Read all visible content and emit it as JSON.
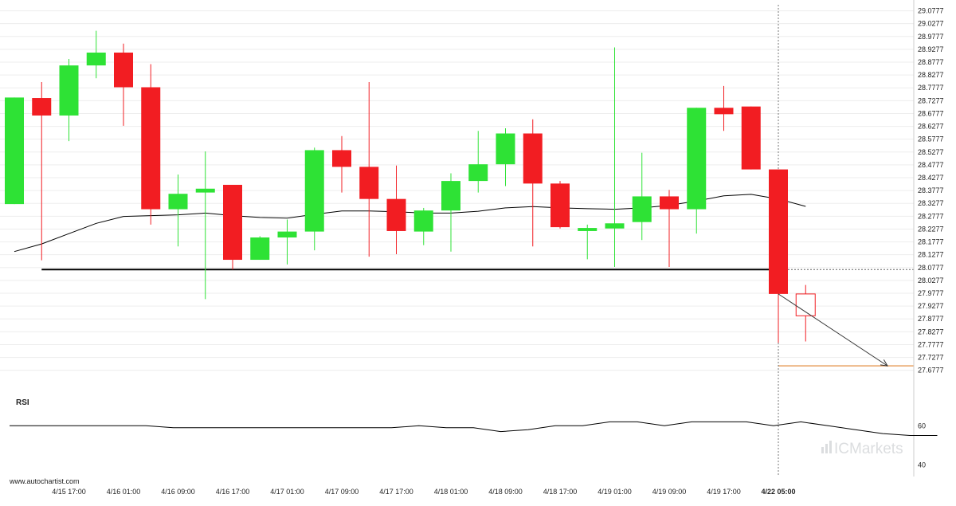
{
  "chart_data": {
    "type": "candlestick",
    "x_labels": [
      "4/15 17:00",
      "4/16 01:00",
      "4/16 09:00",
      "4/16 17:00",
      "4/17 01:00",
      "4/17 09:00",
      "4/17 17:00",
      "4/18 01:00",
      "4/18 09:00",
      "4/18 17:00",
      "4/19 01:00",
      "4/19 09:00",
      "4/19 17:00",
      "4/22 05:00"
    ],
    "x_label_candle_index": [
      2,
      4,
      6,
      8,
      10,
      12,
      14,
      16,
      18,
      20,
      22,
      24,
      26,
      28
    ],
    "y_ticks": [
      "29.0777",
      "29.0277",
      "28.9777",
      "28.9277",
      "28.8777",
      "28.8277",
      "28.7777",
      "28.7277",
      "28.6777",
      "28.6277",
      "28.5777",
      "28.5277",
      "28.4777",
      "28.4277",
      "28.3777",
      "28.3277",
      "28.2777",
      "28.2277",
      "28.1777",
      "28.1277",
      "28.0777",
      "28.0277",
      "27.9777",
      "27.9277",
      "27.8777",
      "27.8277",
      "27.7777",
      "27.7277",
      "27.6777"
    ],
    "ylim": [
      27.655,
      29.095
    ],
    "candles": [
      {
        "o": 28.325,
        "h": 28.74,
        "l": 28.325,
        "c": 28.74
      },
      {
        "o": 28.738,
        "h": 28.8,
        "l": 28.106,
        "c": 28.67
      },
      {
        "o": 28.67,
        "h": 28.89,
        "l": 28.57,
        "c": 28.865
      },
      {
        "o": 28.865,
        "h": 29.0,
        "l": 28.815,
        "c": 28.915
      },
      {
        "o": 28.915,
        "h": 28.95,
        "l": 28.63,
        "c": 28.78
      },
      {
        "o": 28.78,
        "h": 28.87,
        "l": 28.245,
        "c": 28.305
      },
      {
        "o": 28.305,
        "h": 28.44,
        "l": 28.16,
        "c": 28.365
      },
      {
        "o": 28.37,
        "h": 28.53,
        "l": 27.955,
        "c": 28.385
      },
      {
        "o": 28.4,
        "h": 28.4,
        "l": 28.07,
        "c": 28.108
      },
      {
        "o": 28.108,
        "h": 28.2,
        "l": 28.108,
        "c": 28.195
      },
      {
        "o": 28.195,
        "h": 28.265,
        "l": 28.09,
        "c": 28.218
      },
      {
        "o": 28.218,
        "h": 28.545,
        "l": 28.145,
        "c": 28.535
      },
      {
        "o": 28.535,
        "h": 28.59,
        "l": 28.37,
        "c": 28.47
      },
      {
        "o": 28.47,
        "h": 28.8,
        "l": 28.12,
        "c": 28.345
      },
      {
        "o": 28.345,
        "h": 28.475,
        "l": 28.13,
        "c": 28.22
      },
      {
        "o": 28.218,
        "h": 28.31,
        "l": 28.165,
        "c": 28.3
      },
      {
        "o": 28.3,
        "h": 28.445,
        "l": 28.14,
        "c": 28.415
      },
      {
        "o": 28.415,
        "h": 28.61,
        "l": 28.37,
        "c": 28.48
      },
      {
        "o": 28.48,
        "h": 28.62,
        "l": 28.395,
        "c": 28.6
      },
      {
        "o": 28.6,
        "h": 28.655,
        "l": 28.16,
        "c": 28.405
      },
      {
        "o": 28.405,
        "h": 28.415,
        "l": 28.23,
        "c": 28.235
      },
      {
        "o": 28.22,
        "h": 28.245,
        "l": 28.11,
        "c": 28.232
      },
      {
        "o": 28.23,
        "h": 28.935,
        "l": 28.08,
        "c": 28.25
      },
      {
        "o": 28.255,
        "h": 28.525,
        "l": 28.185,
        "c": 28.355
      },
      {
        "o": 28.355,
        "h": 28.38,
        "l": 28.08,
        "c": 28.305
      },
      {
        "o": 28.305,
        "h": 28.7,
        "l": 28.21,
        "c": 28.7
      },
      {
        "o": 28.7,
        "h": 28.785,
        "l": 28.61,
        "c": 28.675
      },
      {
        "o": 28.705,
        "h": 28.705,
        "l": 28.46,
        "c": 28.46
      },
      {
        "o": 28.46,
        "h": 28.46,
        "l": 27.785,
        "c": 27.975
      }
    ],
    "pending_candle": {
      "index": 29,
      "o": 27.975,
      "h": 28.01,
      "l": 27.79,
      "c": 27.89
    },
    "moving_average": {
      "start_index": 0,
      "values": [
        28.14,
        28.17,
        28.21,
        28.25,
        28.277,
        28.28,
        28.283,
        28.29,
        28.28,
        28.273,
        28.27,
        28.285,
        28.298,
        28.298,
        28.295,
        28.29,
        28.29,
        28.297,
        28.31,
        28.315,
        28.31,
        28.307,
        28.305,
        28.31,
        28.32,
        28.337,
        28.357,
        28.363,
        28.345,
        28.316
      ]
    },
    "support_level": {
      "value": 28.07,
      "start_index": 1,
      "end_index": 28
    },
    "current_price_line": {
      "value": 28.07,
      "start_index": 28
    },
    "target_level": {
      "value": 27.695,
      "start_index": 28,
      "end_index": 32
    },
    "projection_arrow": {
      "from_index": 28,
      "from_value": 27.975,
      "to_index": 32,
      "to_value": 27.695
    },
    "rsi": {
      "label": "RSI",
      "y_ticks": [
        60,
        40
      ],
      "ylim": [
        34,
        74
      ],
      "values": [
        60,
        60,
        60,
        60,
        60,
        60,
        59,
        59,
        59,
        59,
        59,
        59,
        59,
        59,
        59,
        60,
        59,
        59,
        57,
        58,
        60,
        60,
        62,
        62,
        60,
        62,
        62,
        62,
        60,
        62,
        60,
        58,
        56,
        55,
        55
      ]
    },
    "colors": {
      "up": "#2ee235",
      "down": "#f21d22",
      "ma": "#000000",
      "support": "#000000",
      "target": "#e8a060",
      "grid": "#ededed",
      "axis": "#cccccc",
      "text": "#222222",
      "vline": "#777777"
    }
  },
  "branding": {
    "site": "www.autochartist.com",
    "watermark": "ICMarkets"
  }
}
